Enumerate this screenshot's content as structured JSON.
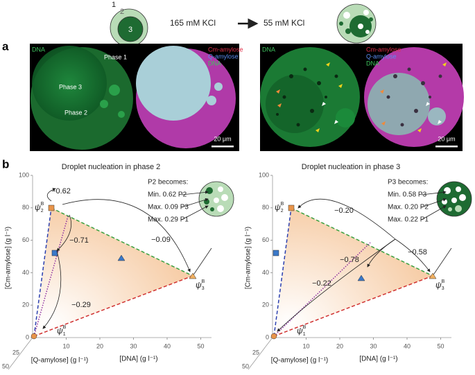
{
  "schematic": {
    "phase_labels": [
      "1",
      "2",
      "3"
    ],
    "left_condition": "165 mM KCl",
    "right_condition": "55 mM KCl"
  },
  "panel_a": {
    "label": "a",
    "left": {
      "channel_label": "DNA",
      "phase_labels": [
        "Phase 1",
        "Phase 3",
        "Phase 2"
      ],
      "merge_legend": [
        "Cm-amylose",
        "Q-amylose",
        "DNA"
      ],
      "scale_bar": "20 μm"
    },
    "right": {
      "channel_label": "DNA",
      "merge_legend": [
        "Cm-amylose",
        "Q-amylose",
        "DNA"
      ],
      "scale_bar": "20 μm"
    }
  },
  "panel_b": {
    "label": "b",
    "plots": [
      {
        "title": "Droplet nucleation in phase 2",
        "y_axis_label": "[Cm-amylose] (g l⁻¹)",
        "x_axis_label": "[DNA] (g l⁻¹)",
        "z_axis_label": "[Q-amylose] (g l⁻¹)",
        "yticks": [
          0,
          20,
          40,
          60,
          80,
          100
        ],
        "xticks": [
          10,
          20,
          30,
          40,
          50
        ],
        "zticks": [
          25,
          50
        ],
        "vertex_labels": [
          {
            "symbol": "ψ",
            "sub": "2",
            "sup": "B"
          },
          {
            "symbol": "ψ",
            "sub": "3",
            "sup": "B"
          },
          {
            "symbol": "ψ",
            "sub": "1",
            "sup": "B"
          }
        ],
        "arrow_labels": [
          "−0.62",
          "−0.71",
          "−0.29",
          "−0.09"
        ],
        "legend": {
          "heading": "P2 becomes:",
          "lines": [
            "Min. 0.62 P2",
            "Max. 0.09 P3",
            "Max. 0.29 P1"
          ]
        }
      },
      {
        "title": "Droplet nucleation in phase 3",
        "y_axis_label": "[Cm-amylose] (g l⁻¹)",
        "x_axis_label": "[DNA] (g l⁻¹)",
        "z_axis_label": "[Q-amylose] (g l⁻¹)",
        "yticks": [
          0,
          20,
          40,
          60,
          80,
          100
        ],
        "xticks": [
          10,
          20,
          30,
          40,
          50
        ],
        "zticks": [
          25,
          50
        ],
        "vertex_labels": [
          {
            "symbol": "ψ",
            "sub": "2",
            "sup": "B"
          },
          {
            "symbol": "ψ",
            "sub": "3",
            "sup": "B"
          },
          {
            "symbol": "ψ",
            "sub": "1",
            "sup": "B"
          }
        ],
        "arrow_labels": [
          "−0.20",
          "−0.58",
          "−0.78",
          "−0.22"
        ],
        "legend": {
          "heading": "P3 becomes:",
          "lines": [
            "Min. 0.58 P3",
            "Max. 0.20 P2",
            "Max. 0.22 P1"
          ]
        }
      }
    ]
  }
}
